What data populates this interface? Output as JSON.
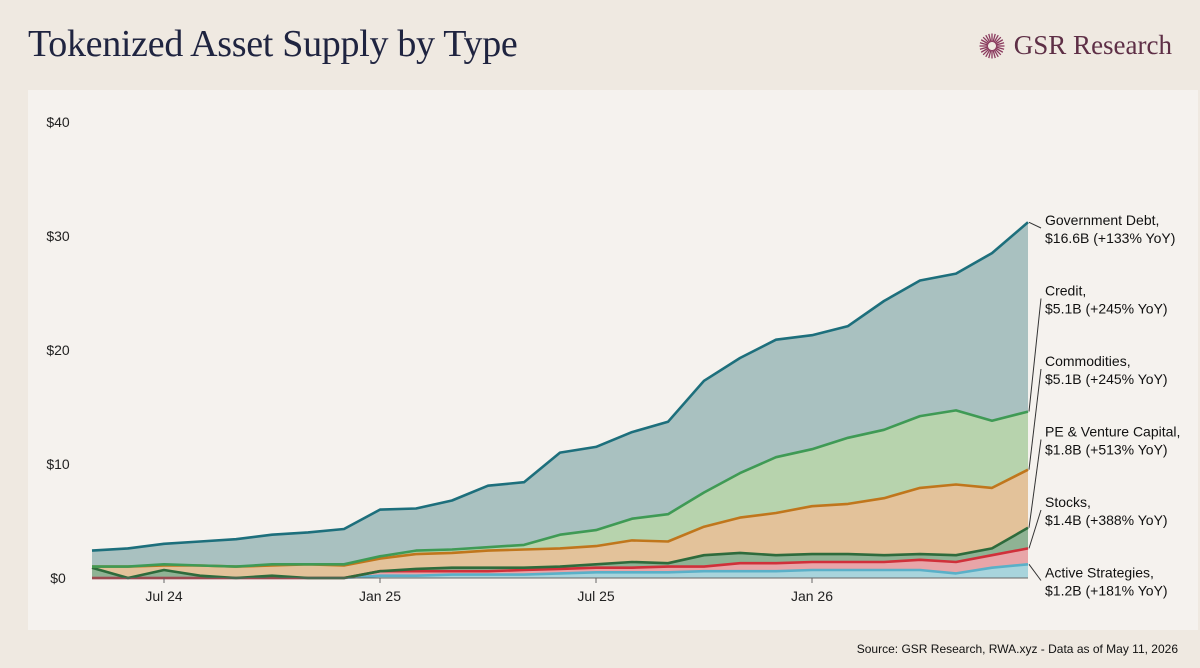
{
  "title": "Tokenized Asset Supply by Type",
  "brand": {
    "name": "GSR Research",
    "logo_icon": "starburst-logo-icon",
    "logo_color": "#8a3a5e"
  },
  "source": "Source: GSR Research, RWA.xyz - Data as of May 11, 2026",
  "chart_data": {
    "type": "area",
    "stacked": true,
    "title": "Tokenized Asset Supply by Type",
    "xlabel": "",
    "ylabel": "",
    "x_ticks": [
      "Jul 24",
      "Jan 25",
      "Jul 25",
      "Jan 26"
    ],
    "y_ticks": [
      "$0",
      "$10",
      "$20",
      "$30",
      "$40"
    ],
    "ylim": [
      0,
      40
    ],
    "grid": false,
    "legend": "right-end labels",
    "series": [
      {
        "name": "Active Strategies",
        "label_lines": [
          "Active Strategies,",
          "$1.2B (+181% YoY)"
        ],
        "line_color": "#5ab0c8",
        "fill_color": "#a8d4dc",
        "values": [
          0,
          0,
          0,
          0,
          0,
          0,
          0,
          0,
          0.2,
          0.2,
          0.3,
          0.3,
          0.3,
          0.4,
          0.5,
          0.5,
          0.5,
          0.6,
          0.6,
          0.6,
          0.7,
          0.7,
          0.7,
          0.7,
          0.4,
          0.9,
          1.2
        ]
      },
      {
        "name": "Stocks",
        "label_lines": [
          "Stocks,",
          "$1.4B (+388% YoY)"
        ],
        "line_color": "#d0303a",
        "fill_color": "#e8a5a8",
        "values": [
          0,
          0,
          0,
          0,
          0,
          0,
          0,
          0,
          0.4,
          0.4,
          0.3,
          0.3,
          0.4,
          0.4,
          0.4,
          0.4,
          0.5,
          0.4,
          0.7,
          0.7,
          0.7,
          0.7,
          0.7,
          0.9,
          1.0,
          1.1,
          1.4
        ]
      },
      {
        "name": "PE & Venture Capital",
        "label_lines": [
          "PE & Venture Capital,",
          "$1.8B (+513% YoY)"
        ],
        "line_color": "#2e6b3c",
        "fill_color": "#8fb394",
        "values": [
          0.9,
          0,
          0.7,
          0.2,
          0,
          0.2,
          0,
          0,
          0,
          0.2,
          0.3,
          0.3,
          0.2,
          0.2,
          0.3,
          0.5,
          0.3,
          1.0,
          0.9,
          0.7,
          0.7,
          0.7,
          0.6,
          0.5,
          0.6,
          0.6,
          1.8
        ]
      },
      {
        "name": "Commodities",
        "label_lines": [
          "Commodities,",
          "$5.1B (+245% YoY)"
        ],
        "line_color": "#c0761c",
        "fill_color": "#e3c29a",
        "values": [
          0.1,
          1.0,
          0.4,
          0.9,
          1.0,
          0.9,
          1.2,
          1.1,
          1.1,
          1.3,
          1.3,
          1.5,
          1.6,
          1.6,
          1.6,
          1.9,
          1.9,
          2.5,
          3.1,
          3.7,
          4.2,
          4.4,
          5.0,
          5.8,
          6.2,
          5.3,
          5.1
        ]
      },
      {
        "name": "Credit",
        "label_lines": [
          "Credit,",
          "$5.1B (+245% YoY)"
        ],
        "line_color": "#3f9a55",
        "fill_color": "#b7d3ad",
        "values": [
          0,
          0,
          0.1,
          0,
          0,
          0.1,
          0,
          0.1,
          0.2,
          0.3,
          0.3,
          0.3,
          0.4,
          1.2,
          1.4,
          1.9,
          2.4,
          3.0,
          3.9,
          4.9,
          5.0,
          5.8,
          6.0,
          6.3,
          6.5,
          5.9,
          5.1
        ]
      },
      {
        "name": "Government Debt",
        "label_lines": [
          "Government Debt,",
          "$16.6B (+133% YoY)"
        ],
        "line_color": "#1d6f7c",
        "fill_color": "#a9c1c0",
        "values": [
          1.4,
          1.6,
          1.8,
          2.1,
          2.4,
          2.6,
          2.8,
          3.1,
          4.1,
          3.7,
          4.3,
          5.4,
          5.5,
          7.2,
          7.3,
          7.6,
          8.1,
          9.8,
          10.1,
          10.3,
          10.0,
          9.8,
          11.3,
          11.9,
          12.0,
          14.7,
          16.6
        ]
      }
    ]
  }
}
